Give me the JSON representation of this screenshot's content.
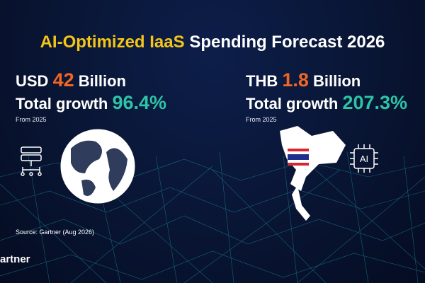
{
  "title": {
    "highlight": "AI-Optimized IaaS",
    "rest": "Spending Forecast 2026"
  },
  "panels": [
    {
      "currency": "USD",
      "amount": "42",
      "unit": "Billion",
      "growth_label": "Total growth",
      "growth": "96.4%",
      "note": "From 2025"
    },
    {
      "currency": "THB",
      "amount": "1.8",
      "unit": "Billion",
      "growth_label": "Total growth",
      "growth": "207.3%",
      "note": "From 2025"
    }
  ],
  "icon_label": "AI",
  "source": "Source: Gartner (Aug 2026)",
  "logo": "artner"
}
